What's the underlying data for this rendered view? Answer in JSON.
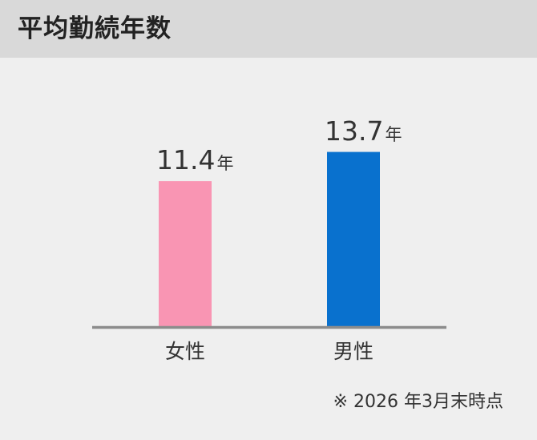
{
  "chart_data": {
    "type": "bar",
    "title": "平均勤続年数",
    "categories": [
      "女性",
      "男性"
    ],
    "values": [
      11.4,
      13.7
    ],
    "unit": "年",
    "colors": [
      "#f995b3",
      "#0971ce"
    ],
    "baseline_color": "#8c8c8c",
    "note": "※ 2026 年3月末時点",
    "ylim": [
      0,
      15.5
    ],
    "grid": false,
    "legend": "none"
  }
}
